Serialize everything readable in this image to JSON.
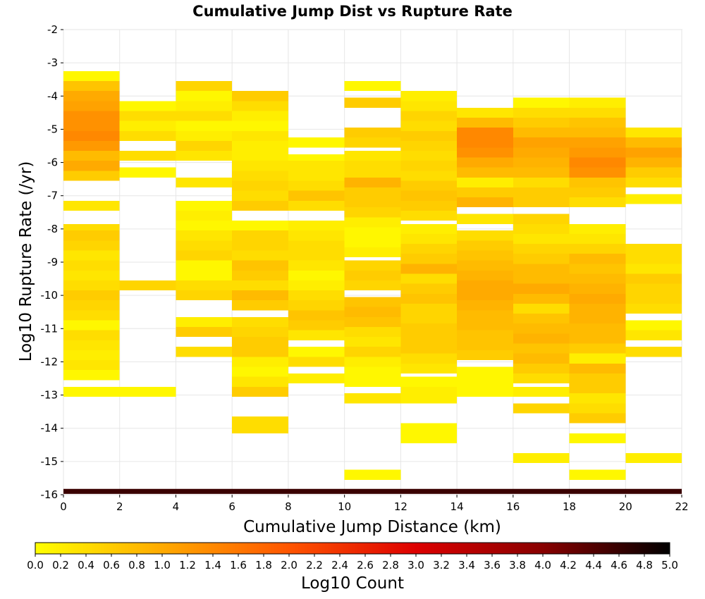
{
  "chart_data": {
    "type": "heatmap",
    "title": "Cumulative Jump Dist vs Rupture Rate",
    "xlabel": "Cumulative Jump Distance (km)",
    "ylabel": "Log10 Rupture Rate (/yr)",
    "colorbar_label": "Log10 Count",
    "xlim": [
      0,
      22
    ],
    "ylim": [
      -16,
      -2
    ],
    "x_ticks": [
      0,
      2,
      4,
      6,
      8,
      10,
      12,
      14,
      16,
      18,
      20,
      22
    ],
    "y_ticks": [
      -2,
      -3,
      -4,
      -5,
      -6,
      -7,
      -8,
      -9,
      -10,
      -11,
      -12,
      -13,
      -14,
      -15,
      -16
    ],
    "colorbar_range": [
      0.0,
      5.0
    ],
    "colorbar_ticks": [
      "0.0",
      "0.2",
      "0.4",
      "0.6",
      "0.8",
      "1.0",
      "1.2",
      "1.4",
      "1.6",
      "1.8",
      "2.0",
      "2.2",
      "2.4",
      "2.6",
      "2.8",
      "3.0",
      "3.2",
      "3.4",
      "3.6",
      "3.8",
      "4.0",
      "4.2",
      "4.4",
      "4.6",
      "4.8",
      "5.0"
    ],
    "colorscale": [
      "#ffff00",
      "#ffaa00",
      "#ff5500",
      "#dd0000",
      "#880000",
      "#000000"
    ],
    "grid": true,
    "x_bin_width": 2,
    "y_bin_height": 0.3,
    "columns": [
      {
        "x": 1,
        "cells": [
          [
            -3.4,
            0.1
          ],
          [
            -3.7,
            0.7
          ],
          [
            -4.0,
            1.0
          ],
          [
            -4.3,
            1.1
          ],
          [
            -4.6,
            1.3
          ],
          [
            -4.9,
            1.3
          ],
          [
            -5.2,
            1.4
          ],
          [
            -5.5,
            1.2
          ],
          [
            -5.8,
            0.8
          ],
          [
            -6.1,
            1.0
          ],
          [
            -6.4,
            0.6
          ],
          [
            -7.3,
            0.3
          ],
          [
            -8.0,
            0.4
          ],
          [
            -8.2,
            0.6
          ],
          [
            -8.5,
            0.5
          ],
          [
            -8.8,
            0.3
          ],
          [
            -9.1,
            0.4
          ],
          [
            -9.4,
            0.3
          ],
          [
            -9.7,
            0.4
          ],
          [
            -10.0,
            0.6
          ],
          [
            -10.3,
            0.5
          ],
          [
            -10.6,
            0.4
          ],
          [
            -10.9,
            0.1
          ],
          [
            -11.2,
            0.4
          ],
          [
            -11.5,
            0.3
          ],
          [
            -11.8,
            0.2
          ],
          [
            -12.1,
            0.3
          ],
          [
            -12.4,
            0.1
          ],
          [
            -12.9,
            0.1
          ]
        ]
      },
      {
        "x": 3,
        "cells": [
          [
            -4.3,
            0.1
          ],
          [
            -4.6,
            0.4
          ],
          [
            -4.9,
            0.2
          ],
          [
            -5.2,
            0.4
          ],
          [
            -5.8,
            0.4
          ],
          [
            -6.3,
            0.1
          ],
          [
            -9.7,
            0.5
          ],
          [
            -12.9,
            0.1
          ]
        ]
      },
      {
        "x": 5,
        "cells": [
          [
            -3.7,
            0.5
          ],
          [
            -4.0,
            0.1
          ],
          [
            -4.3,
            0.2
          ],
          [
            -4.6,
            0.4
          ],
          [
            -4.9,
            0.1
          ],
          [
            -5.2,
            0.2
          ],
          [
            -5.5,
            0.5
          ],
          [
            -5.8,
            0.3
          ],
          [
            -6.6,
            0.3
          ],
          [
            -7.3,
            0.1
          ],
          [
            -7.6,
            0.2
          ],
          [
            -7.9,
            0.1
          ],
          [
            -8.2,
            0.3
          ],
          [
            -8.5,
            0.4
          ],
          [
            -8.8,
            0.5
          ],
          [
            -9.1,
            0.1
          ],
          [
            -9.4,
            0.1
          ],
          [
            -9.7,
            0.4
          ],
          [
            -10.0,
            0.5
          ],
          [
            -10.8,
            0.2
          ],
          [
            -11.1,
            0.6
          ],
          [
            -11.7,
            0.4
          ]
        ]
      },
      {
        "x": 7,
        "cells": [
          [
            -4.0,
            0.6
          ],
          [
            -4.3,
            0.4
          ],
          [
            -4.6,
            0.2
          ],
          [
            -4.9,
            0.1
          ],
          [
            -5.2,
            0.3
          ],
          [
            -5.5,
            0.2
          ],
          [
            -5.8,
            0.2
          ],
          [
            -6.1,
            0.3
          ],
          [
            -6.4,
            0.4
          ],
          [
            -6.7,
            0.5
          ],
          [
            -7.0,
            0.4
          ],
          [
            -7.3,
            0.6
          ],
          [
            -7.9,
            0.1
          ],
          [
            -8.2,
            0.5
          ],
          [
            -8.5,
            0.5
          ],
          [
            -8.8,
            0.4
          ],
          [
            -9.1,
            0.7
          ],
          [
            -9.4,
            0.6
          ],
          [
            -9.7,
            0.4
          ],
          [
            -10.0,
            0.8
          ],
          [
            -10.3,
            0.6
          ],
          [
            -10.8,
            0.4
          ],
          [
            -11.1,
            0.5
          ],
          [
            -11.4,
            0.6
          ],
          [
            -11.7,
            0.6
          ],
          [
            -12.0,
            0.2
          ],
          [
            -12.3,
            0.1
          ],
          [
            -12.6,
            0.3
          ],
          [
            -12.9,
            0.6
          ],
          [
            -13.8,
            0.4
          ],
          [
            -14.0,
            0.4
          ]
        ]
      },
      {
        "x": 9,
        "cells": [
          [
            -5.4,
            0.1
          ],
          [
            -5.9,
            0.1
          ],
          [
            -6.1,
            0.3
          ],
          [
            -6.4,
            0.3
          ],
          [
            -6.7,
            0.4
          ],
          [
            -7.0,
            0.7
          ],
          [
            -7.3,
            0.4
          ],
          [
            -7.9,
            0.2
          ],
          [
            -8.2,
            0.3
          ],
          [
            -8.5,
            0.4
          ],
          [
            -8.8,
            0.4
          ],
          [
            -9.1,
            0.3
          ],
          [
            -9.4,
            0.1
          ],
          [
            -9.7,
            0.2
          ],
          [
            -10.0,
            0.4
          ],
          [
            -10.3,
            0.5
          ],
          [
            -10.6,
            0.7
          ],
          [
            -10.9,
            0.6
          ],
          [
            -11.2,
            0.3
          ],
          [
            -11.7,
            0.1
          ],
          [
            -12.0,
            0.4
          ],
          [
            -12.5,
            0.2
          ]
        ]
      },
      {
        "x": 11,
        "cells": [
          [
            -3.7,
            0.1
          ],
          [
            -4.2,
            0.6
          ],
          [
            -5.1,
            0.6
          ],
          [
            -5.4,
            0.5
          ],
          [
            -5.8,
            0.3
          ],
          [
            -6.1,
            0.4
          ],
          [
            -6.4,
            0.4
          ],
          [
            -6.6,
            0.9
          ],
          [
            -6.9,
            0.6
          ],
          [
            -7.2,
            0.6
          ],
          [
            -7.5,
            0.5
          ],
          [
            -7.8,
            0.2
          ],
          [
            -8.1,
            0.1
          ],
          [
            -8.4,
            0.1
          ],
          [
            -8.7,
            0.2
          ],
          [
            -9.1,
            0.5
          ],
          [
            -9.4,
            0.6
          ],
          [
            -9.7,
            0.5
          ],
          [
            -10.2,
            0.7
          ],
          [
            -10.5,
            0.8
          ],
          [
            -10.8,
            0.7
          ],
          [
            -11.1,
            0.4
          ],
          [
            -11.4,
            0.3
          ],
          [
            -11.7,
            0.5
          ],
          [
            -12.0,
            0.2
          ],
          [
            -12.3,
            0.1
          ],
          [
            -12.6,
            0.1
          ],
          [
            -13.1,
            0.3
          ],
          [
            -15.4,
            0.1
          ]
        ]
      },
      {
        "x": 13,
        "cells": [
          [
            -4.0,
            0.2
          ],
          [
            -4.3,
            0.3
          ],
          [
            -4.6,
            0.5
          ],
          [
            -4.9,
            0.4
          ],
          [
            -5.2,
            0.6
          ],
          [
            -5.5,
            0.5
          ],
          [
            -5.8,
            0.4
          ],
          [
            -6.1,
            0.5
          ],
          [
            -6.4,
            0.4
          ],
          [
            -6.7,
            0.6
          ],
          [
            -7.0,
            0.7
          ],
          [
            -7.3,
            0.6
          ],
          [
            -7.6,
            0.4
          ],
          [
            -8.0,
            0.2
          ],
          [
            -8.3,
            0.3
          ],
          [
            -8.6,
            0.5
          ],
          [
            -8.9,
            0.6
          ],
          [
            -9.2,
            0.9
          ],
          [
            -9.5,
            0.4
          ],
          [
            -9.8,
            0.6
          ],
          [
            -10.1,
            0.7
          ],
          [
            -10.4,
            0.5
          ],
          [
            -10.7,
            0.5
          ],
          [
            -11.0,
            0.6
          ],
          [
            -11.3,
            0.6
          ],
          [
            -11.6,
            0.6
          ],
          [
            -11.9,
            0.4
          ],
          [
            -12.2,
            0.3
          ],
          [
            -12.6,
            0.1
          ],
          [
            -12.9,
            0.2
          ],
          [
            -13.1,
            0.2
          ],
          [
            -14.0,
            0.1
          ],
          [
            -14.3,
            0.1
          ]
        ]
      },
      {
        "x": 15,
        "cells": [
          [
            -4.5,
            0.3
          ],
          [
            -4.8,
            0.8
          ],
          [
            -5.1,
            1.4
          ],
          [
            -5.4,
            1.4
          ],
          [
            -5.7,
            1.3
          ],
          [
            -6.0,
            1.0
          ],
          [
            -6.3,
            0.8
          ],
          [
            -6.6,
            0.2
          ],
          [
            -6.9,
            0.6
          ],
          [
            -7.2,
            0.9
          ],
          [
            -7.7,
            0.3
          ],
          [
            -8.2,
            0.4
          ],
          [
            -8.5,
            0.6
          ],
          [
            -8.8,
            0.7
          ],
          [
            -9.1,
            0.8
          ],
          [
            -9.4,
            0.9
          ],
          [
            -9.7,
            1.0
          ],
          [
            -10.0,
            1.0
          ],
          [
            -10.3,
            0.9
          ],
          [
            -10.6,
            0.8
          ],
          [
            -10.9,
            0.8
          ],
          [
            -11.2,
            0.7
          ],
          [
            -11.5,
            0.7
          ],
          [
            -11.8,
            0.6
          ],
          [
            -12.3,
            0.1
          ],
          [
            -12.6,
            0.1
          ],
          [
            -12.9,
            0.1
          ]
        ]
      },
      {
        "x": 17,
        "cells": [
          [
            -4.2,
            0.1
          ],
          [
            -4.5,
            0.4
          ],
          [
            -4.8,
            0.6
          ],
          [
            -5.1,
            0.8
          ],
          [
            -5.4,
            1.1
          ],
          [
            -5.7,
            1.0
          ],
          [
            -6.0,
            0.9
          ],
          [
            -6.3,
            0.8
          ],
          [
            -6.6,
            0.4
          ],
          [
            -6.9,
            0.6
          ],
          [
            -7.2,
            0.6
          ],
          [
            -7.7,
            0.5
          ],
          [
            -8.0,
            0.4
          ],
          [
            -8.3,
            0.3
          ],
          [
            -8.6,
            0.5
          ],
          [
            -8.9,
            0.6
          ],
          [
            -9.2,
            0.8
          ],
          [
            -9.5,
            0.8
          ],
          [
            -9.8,
            1.0
          ],
          [
            -10.1,
            0.8
          ],
          [
            -10.4,
            0.4
          ],
          [
            -10.7,
            0.7
          ],
          [
            -11.0,
            0.8
          ],
          [
            -11.3,
            0.9
          ],
          [
            -11.6,
            0.7
          ],
          [
            -11.9,
            0.8
          ],
          [
            -12.2,
            0.6
          ],
          [
            -12.5,
            0.4
          ],
          [
            -12.9,
            0.2
          ],
          [
            -13.4,
            0.5
          ],
          [
            -14.9,
            0.2
          ]
        ]
      },
      {
        "x": 19,
        "cells": [
          [
            -4.2,
            0.2
          ],
          [
            -4.5,
            0.4
          ],
          [
            -4.8,
            0.7
          ],
          [
            -5.1,
            0.8
          ],
          [
            -5.4,
            1.1
          ],
          [
            -5.7,
            1.2
          ],
          [
            -6.0,
            1.4
          ],
          [
            -6.3,
            1.3
          ],
          [
            -6.6,
            0.7
          ],
          [
            -6.9,
            0.6
          ],
          [
            -7.2,
            0.4
          ],
          [
            -8.0,
            0.2
          ],
          [
            -8.3,
            0.3
          ],
          [
            -8.6,
            0.5
          ],
          [
            -8.9,
            0.8
          ],
          [
            -9.2,
            0.7
          ],
          [
            -9.5,
            0.8
          ],
          [
            -9.8,
            0.9
          ],
          [
            -10.1,
            1.0
          ],
          [
            -10.4,
            0.9
          ],
          [
            -10.7,
            0.9
          ],
          [
            -11.0,
            0.8
          ],
          [
            -11.3,
            0.8
          ],
          [
            -11.6,
            0.6
          ],
          [
            -11.9,
            0.2
          ],
          [
            -12.2,
            0.8
          ],
          [
            -12.5,
            0.6
          ],
          [
            -12.8,
            0.6
          ],
          [
            -13.1,
            0.3
          ],
          [
            -13.4,
            0.4
          ],
          [
            -13.7,
            0.6
          ],
          [
            -14.3,
            0.1
          ],
          [
            -15.4,
            0.1
          ]
        ]
      },
      {
        "x": 21,
        "cells": [
          [
            -5.1,
            0.3
          ],
          [
            -5.4,
            0.8
          ],
          [
            -5.7,
            1.1
          ],
          [
            -6.0,
            0.9
          ],
          [
            -6.3,
            0.6
          ],
          [
            -6.6,
            0.4
          ],
          [
            -7.1,
            0.2
          ],
          [
            -8.6,
            0.4
          ],
          [
            -8.9,
            0.4
          ],
          [
            -9.2,
            0.3
          ],
          [
            -9.5,
            0.6
          ],
          [
            -9.8,
            0.5
          ],
          [
            -10.1,
            0.5
          ],
          [
            -10.4,
            0.4
          ],
          [
            -10.9,
            0.1
          ],
          [
            -11.2,
            0.3
          ],
          [
            -11.7,
            0.4
          ],
          [
            -14.9,
            0.2
          ]
        ]
      }
    ],
    "bottom_row": {
      "y": -15.9,
      "height": 0.15,
      "color": "#3a0000"
    }
  }
}
